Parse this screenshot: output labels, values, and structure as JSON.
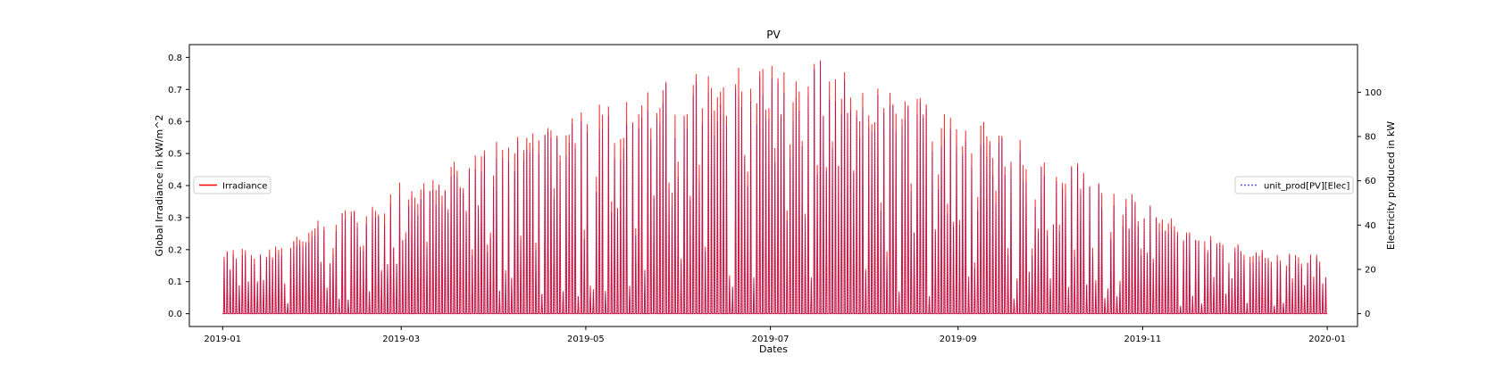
{
  "chart_data": {
    "type": "line",
    "title": "PV",
    "xlabel": "Dates",
    "ylabel_left": "Global Irradiance in kW/m^2",
    "ylabel_right": "Electricity produced in kW",
    "x_range": [
      "2018-12-21",
      "2020-01-11"
    ],
    "ylim_left": [
      -0.04,
      0.84
    ],
    "ylim_right": [
      -5.8,
      121.5
    ],
    "x_ticks": [
      "2019-01",
      "2019-03",
      "2019-05",
      "2019-07",
      "2019-09",
      "2019-11",
      "2020-01"
    ],
    "y_ticks_left": [
      "0.0",
      "0.1",
      "0.2",
      "0.3",
      "0.4",
      "0.5",
      "0.6",
      "0.7",
      "0.8"
    ],
    "y_ticks_right": [
      "0",
      "20",
      "40",
      "60",
      "80",
      "100"
    ],
    "grid": false,
    "resolution": "hourly, daily peak around noon, zero at night",
    "series": [
      {
        "name": "Irradiance",
        "axis": "left",
        "color": "#ff0000",
        "style": "solid",
        "legend_position": "center-left",
        "approx_monthly_daily_peak": {
          "2019-01": 0.2,
          "2019-02": 0.34,
          "2019-03": 0.45,
          "2019-04": 0.58,
          "2019-05": 0.66,
          "2019-06": 0.75,
          "2019-07": 0.76,
          "2019-08": 0.68,
          "2019-09": 0.56,
          "2019-10": 0.43,
          "2019-11": 0.26,
          "2019-12": 0.18
        },
        "max": 0.8
      },
      {
        "name": "unit_prod[PV][Elec]",
        "axis": "right",
        "color": "#5555ee",
        "style": "dotted",
        "legend_position": "center-right",
        "approx_monthly_daily_peak": {
          "2019-01": 29,
          "2019-02": 49,
          "2019-03": 65,
          "2019-04": 84,
          "2019-05": 95,
          "2019-06": 108,
          "2019-07": 110,
          "2019-08": 98,
          "2019-09": 81,
          "2019-10": 62,
          "2019-11": 38,
          "2019-12": 26
        },
        "max": 115
      }
    ]
  }
}
